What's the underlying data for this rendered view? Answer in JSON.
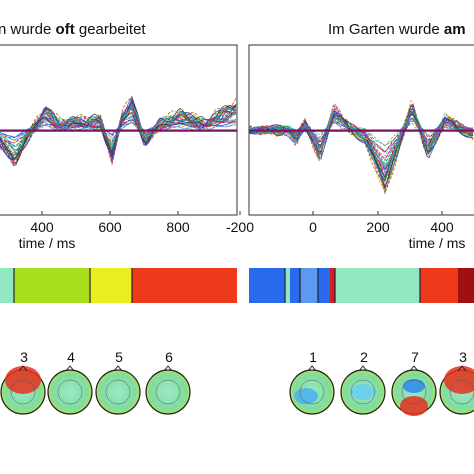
{
  "panels": [
    {
      "title": {
        "before": "n wurde ",
        "bold": "oft",
        "after": " gearbeitet"
      },
      "ticks": [
        "400",
        "600",
        "800"
      ],
      "axis_label": "time / ms",
      "maps": [
        "3",
        "4",
        "5",
        "6"
      ]
    },
    {
      "title": {
        "before": "Im Garten wurde ",
        "bold": "am"
      },
      "ticks": [
        "-200",
        "0",
        "200",
        "400"
      ],
      "axis_label": "time / ms",
      "maps": [
        "1",
        "2",
        "7",
        "3"
      ]
    }
  ]
}
